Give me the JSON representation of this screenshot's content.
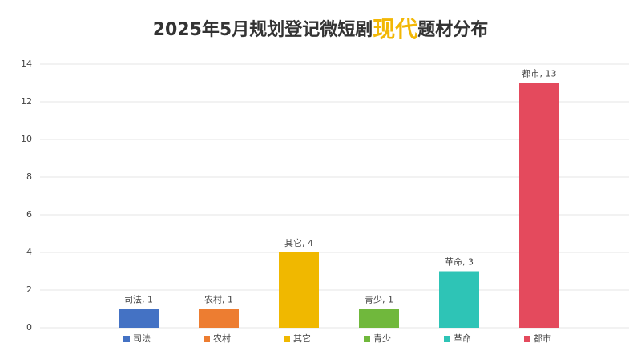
{
  "chart_data": {
    "type": "bar",
    "title_segments": [
      "2025年5月规划登记微短剧",
      "现代",
      "题材分布"
    ],
    "categories": [
      "司法",
      "农村",
      "其它",
      "青少",
      "革命",
      "都市"
    ],
    "values": [
      1,
      1,
      4,
      1,
      3,
      13
    ],
    "value_labels": [
      "司法, 1",
      "农村, 1",
      "其它, 4",
      "青少, 1",
      "革命, 3",
      "都市, 13"
    ],
    "colors": [
      "#4472c4",
      "#ed7d31",
      "#f0b800",
      "#70b83c",
      "#2ec4b6",
      "#e44a5d"
    ],
    "ylim": [
      0,
      14
    ],
    "yticks": [
      0,
      2,
      4,
      6,
      8,
      10,
      12,
      14
    ],
    "grid": true
  }
}
